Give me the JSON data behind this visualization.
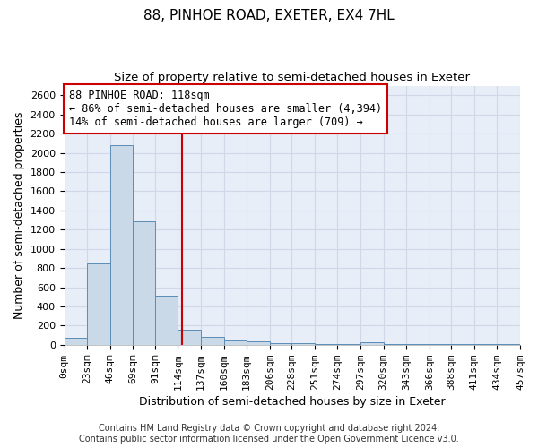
{
  "title": "88, PINHOE ROAD, EXETER, EX4 7HL",
  "subtitle": "Size of property relative to semi-detached houses in Exeter",
  "xlabel": "Distribution of semi-detached houses by size in Exeter",
  "ylabel": "Number of semi-detached properties",
  "footer_line1": "Contains HM Land Registry data © Crown copyright and database right 2024.",
  "footer_line2": "Contains public sector information licensed under the Open Government Licence v3.0.",
  "bar_edges": [
    0,
    23,
    46,
    69,
    91,
    114,
    137,
    160,
    183,
    206,
    228,
    251,
    274,
    297,
    320,
    343,
    366,
    388,
    411,
    434,
    457
  ],
  "bar_heights": [
    75,
    850,
    2080,
    1285,
    510,
    160,
    80,
    45,
    35,
    20,
    20,
    5,
    5,
    25,
    5,
    5,
    5,
    5,
    5,
    5
  ],
  "bar_color": "#c9d9e8",
  "bar_edgecolor": "#5b8db8",
  "subject_value": 118,
  "subject_label": "88 PINHOE ROAD: 118sqm",
  "pct_smaller": 86,
  "pct_smaller_n": "4,394",
  "pct_larger": 14,
  "pct_larger_n": "709",
  "vline_color": "#cc0000",
  "annotation_box_color": "#cc0000",
  "ylim": [
    0,
    2700
  ],
  "yticks": [
    0,
    200,
    400,
    600,
    800,
    1000,
    1200,
    1400,
    1600,
    1800,
    2000,
    2200,
    2400,
    2600
  ],
  "grid_color": "#d0d8e8",
  "bg_color": "#e8eef8",
  "title_fontsize": 11,
  "subtitle_fontsize": 9.5,
  "axis_label_fontsize": 9,
  "tick_fontsize": 8,
  "annotation_fontsize": 8.5,
  "footer_fontsize": 7
}
